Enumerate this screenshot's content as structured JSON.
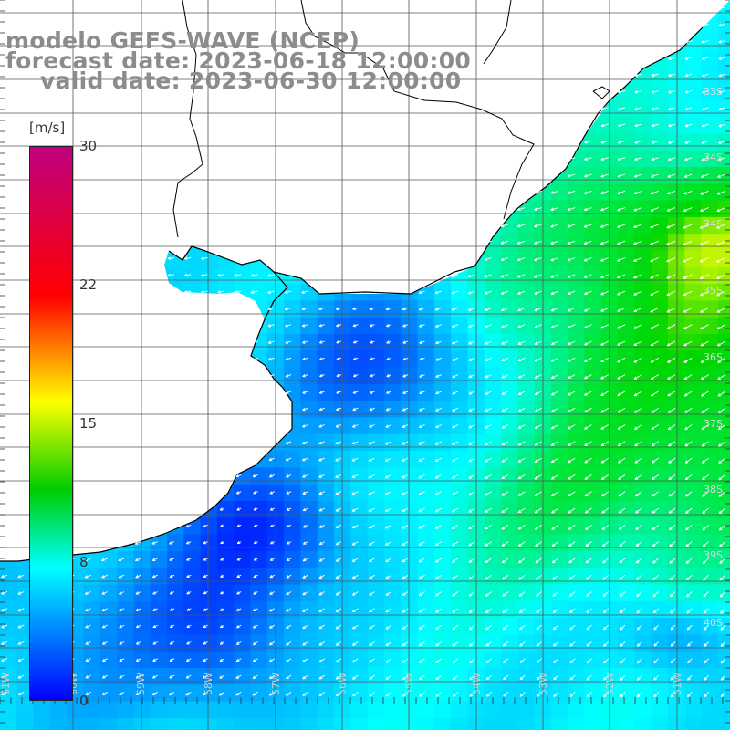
{
  "title": {
    "model": "modelo GEFS-WAVE (NCEP)",
    "forecast": "forecast date: 2023-06-18 12:00:00",
    "valid": "valid date: 2023-06-30 12:00:00"
  },
  "colorbar": {
    "unit": "[m/s]",
    "ticks": [
      "30",
      "22",
      "15",
      "8",
      "0"
    ],
    "colors": [
      "#c0007f",
      "#ff0000",
      "#ffff00",
      "#00cc00",
      "#00ffff",
      "#0000ff"
    ]
  },
  "lat_labels": [
    "33S",
    "34S",
    "34S",
    "35S",
    "36S",
    "37S",
    "38S",
    "39S",
    "40S"
  ],
  "lon_labels": [
    "61W",
    "60W",
    "59W",
    "58W",
    "57W",
    "56W",
    "55W",
    "54W",
    "53W",
    "52W",
    "51W"
  ],
  "colors": {
    "land": "#ffffff",
    "coast": "#000000",
    "grid": "#555555",
    "arrow": "#ffffff"
  }
}
